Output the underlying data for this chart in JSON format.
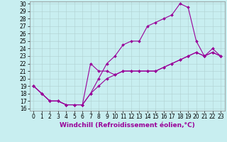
{
  "xlabel": "Windchill (Refroidissement éolien,°C)",
  "bg_color": "#c8eef0",
  "line_color": "#990099",
  "xlim": [
    -0.5,
    23.5
  ],
  "ylim": [
    15.7,
    30.3
  ],
  "xticks": [
    0,
    1,
    2,
    3,
    4,
    5,
    6,
    7,
    8,
    9,
    10,
    11,
    12,
    13,
    14,
    15,
    16,
    17,
    18,
    19,
    20,
    21,
    22,
    23
  ],
  "yticks": [
    16,
    17,
    18,
    19,
    20,
    21,
    22,
    23,
    24,
    25,
    26,
    27,
    28,
    29,
    30
  ],
  "line1_x": [
    0,
    1,
    2,
    3,
    4,
    5,
    6,
    7,
    8,
    9,
    10,
    11,
    12,
    13,
    14,
    15,
    16,
    17,
    18,
    19,
    20,
    21,
    22,
    23
  ],
  "line1_y": [
    19,
    18,
    17,
    17,
    16.5,
    16.5,
    16.5,
    18,
    20,
    22,
    23,
    24.5,
    25,
    25,
    27,
    27.5,
    28,
    28.5,
    30,
    29.5,
    25,
    23,
    24,
    23
  ],
  "line2_x": [
    0,
    1,
    2,
    3,
    4,
    5,
    6,
    7,
    8,
    9,
    10,
    11,
    12,
    13,
    14,
    15,
    16,
    17,
    18,
    19,
    20,
    21,
    22,
    23
  ],
  "line2_y": [
    19,
    18,
    17,
    17,
    16.5,
    16.5,
    16.5,
    22,
    21,
    21,
    20.5,
    21,
    21,
    21,
    21,
    21,
    21.5,
    22,
    22.5,
    23,
    23.5,
    23,
    23.5,
    23
  ],
  "line3_x": [
    0,
    1,
    2,
    3,
    4,
    5,
    6,
    7,
    8,
    9,
    10,
    11,
    12,
    13,
    14,
    15,
    16,
    17,
    18,
    19,
    20,
    21,
    22,
    23
  ],
  "line3_y": [
    19,
    18,
    17,
    17,
    16.5,
    16.5,
    16.5,
    18,
    19,
    20,
    20.5,
    21,
    21,
    21,
    21,
    21,
    21.5,
    22,
    22.5,
    23,
    23.5,
    23,
    23.5,
    23
  ],
  "grid_color": "#b0d0d0",
  "marker": "D",
  "markersize": 2.0,
  "linewidth": 0.8,
  "xlabel_fontsize": 6.5,
  "tick_fontsize": 5.5
}
